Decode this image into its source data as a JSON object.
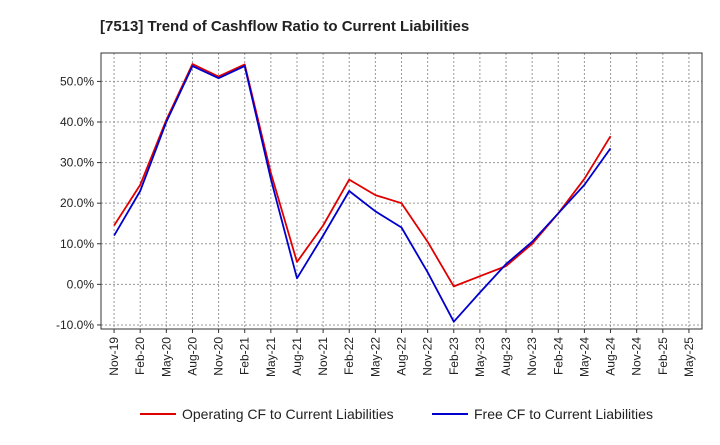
{
  "chart_data": {
    "type": "line",
    "title": "[7513]  Trend of Cashflow Ratio to Current Liabilities",
    "xlabel": "",
    "ylabel": "",
    "categories": [
      "Nov-19",
      "Feb-20",
      "May-20",
      "Aug-20",
      "Nov-20",
      "Feb-21",
      "May-21",
      "Aug-21",
      "Nov-21",
      "Feb-22",
      "May-22",
      "Aug-22",
      "Nov-22",
      "Feb-23",
      "May-23",
      "Aug-23",
      "Nov-23",
      "Feb-24",
      "May-24",
      "Aug-24",
      "Nov-24",
      "Feb-25",
      "May-25"
    ],
    "ylim": [
      -11,
      57
    ],
    "yticks": [
      -10,
      0,
      10,
      20,
      30,
      40,
      50
    ],
    "ytick_labels": [
      "-10.0%",
      "0.0%",
      "10.0%",
      "20.0%",
      "30.0%",
      "40.0%",
      "50.0%"
    ],
    "grid": true,
    "legend_position": "bottom",
    "series": [
      {
        "name": "Operating CF to Current Liabilities",
        "color": "#e00000",
        "values": [
          14.5,
          24.5,
          40.5,
          54.3,
          51.2,
          54.2,
          27.5,
          5.5,
          14.5,
          25.8,
          22.0,
          20.0,
          10.5,
          -0.5,
          2.0,
          4.5,
          10.0,
          17.5,
          26.0,
          36.5,
          null,
          null,
          null
        ]
      },
      {
        "name": "Free CF to Current Liabilities",
        "color": "#0000cc",
        "values": [
          12.0,
          23.0,
          40.0,
          53.8,
          50.8,
          53.8,
          26.0,
          1.5,
          12.0,
          23.0,
          18.0,
          14.0,
          3.0,
          -9.2,
          -2.0,
          5.0,
          10.5,
          17.5,
          24.5,
          33.5,
          null,
          null,
          null
        ]
      }
    ]
  }
}
